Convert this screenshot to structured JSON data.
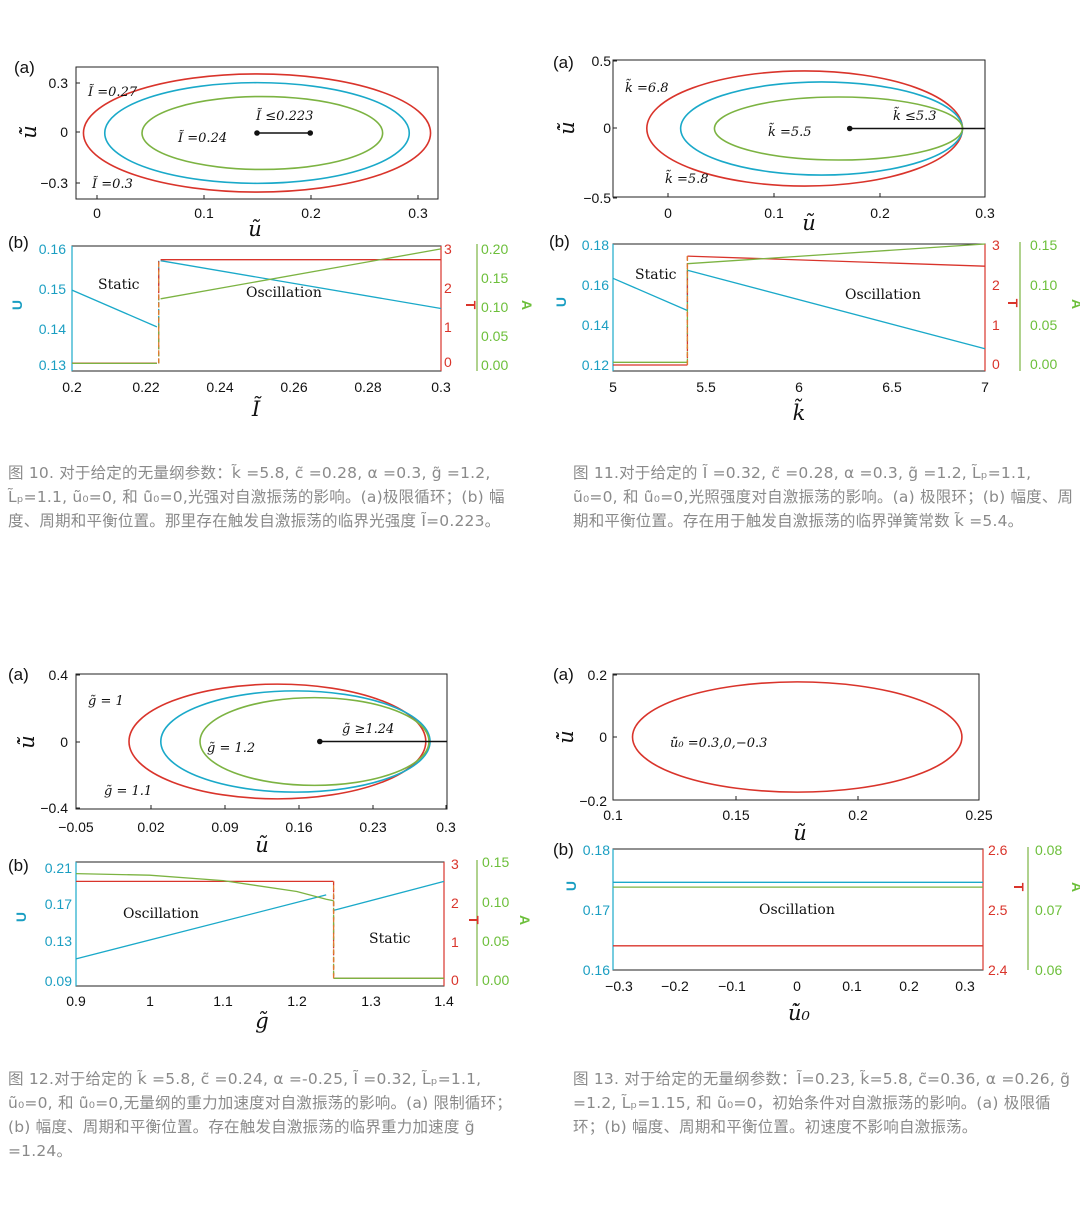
{
  "figures": [
    {
      "caption": "图 10. 对于给定的无量纲参数：k̃ =5.8, c̃ =0.28,  α =0.3, g̃ =1.2, L̃ₚ=1.1, ũ₀=0, 和 u̇̃₀=0,光强对自激振荡的影响。(a)极限循环；(b)  幅度、周期和平衡位置。那里存在触发自激振荡的临界光强度 Ĩ=0.223。",
      "panel_a": {
        "letter": "(a)",
        "xlabel": "ũ",
        "ylabel": "u̇̃",
        "xticks": [
          "0",
          "0.1",
          "0.2",
          "0.3"
        ],
        "yticks": [
          "0.3",
          "0",
          "−0.3"
        ],
        "annotations": [
          "Ĩ =0.27",
          "Ĩ =0.24",
          "Ĩ =0.3",
          "Ĩ ≤0.223"
        ]
      },
      "panel_b": {
        "letter": "(b)",
        "xlabel": "Ĩ",
        "left_label": "U",
        "right_label_1": "T",
        "right_label_2": "A",
        "xticks": [
          "0.2",
          "0.22",
          "0.24",
          "0.26",
          "0.28",
          "0.3"
        ],
        "left_ticks": [
          "0.16",
          "0.15",
          "0.14",
          "0.13"
        ],
        "right_ticks_1": [
          "3",
          "2",
          "1",
          "0"
        ],
        "right_ticks_2": [
          "0.20",
          "0.15",
          "0.10",
          "0.05",
          "0.00"
        ],
        "region_labels": [
          "Static",
          "Oscillation"
        ]
      }
    },
    {
      "caption": "图 11.对于给定的 Ĩ =0.32, c̃ =0.28, α =0.3, g̃ =1.2, L̃ₚ=1.1, ũ₀=0, 和 u̇̃₀=0,光照强度对自激振荡的影响。(a) 极限环；(b) 幅度、周期和平衡位置。存在用于触发自激振荡的临界弹簧常数 k̃ =5.4。",
      "panel_a": {
        "letter": "(a)",
        "xlabel": "ũ",
        "ylabel": "u̇̃",
        "xticks": [
          "0",
          "0.1",
          "0.2",
          "0.3"
        ],
        "yticks": [
          "0.5",
          "0",
          "−0.5"
        ],
        "annotations": [
          "k̃ =6.8",
          "k̃ =5.5",
          "k̃ =5.8",
          "k̃ ≤5.3"
        ]
      },
      "panel_b": {
        "letter": "(b)",
        "xlabel": "k̃",
        "left_label": "U",
        "right_label_1": "T",
        "right_label_2": "A",
        "xticks": [
          "5",
          "5.5",
          "6",
          "6.5",
          "7"
        ],
        "left_ticks": [
          "0.18",
          "0.16",
          "0.14",
          "0.12"
        ],
        "right_ticks_1": [
          "3",
          "2",
          "1",
          "0"
        ],
        "right_ticks_2": [
          "0.15",
          "0.10",
          "0.05",
          "0.00"
        ],
        "region_labels": [
          "Static",
          "Oscillation"
        ]
      }
    },
    {
      "caption": "图 12.对于给定的 k̃ =5.8, c̃ =0.24, α =-0.25, Ĩ =0.32, L̃ₚ=1.1, ũ₀=0, 和 u̇̃₀=0,无量纲的重力加速度对自激振荡的影响。(a) 限制循环；(b)  幅度、周期和平衡位置。存在触发自激振荡的临界重力加速度 g̃ =1.24。",
      "panel_a": {
        "letter": "(a)",
        "xlabel": "ũ",
        "ylabel": "u̇̃",
        "xticks": [
          "−0.05",
          "0.02",
          "0.09",
          "0.16",
          "0.23",
          "0.3"
        ],
        "yticks": [
          "0.4",
          "0",
          "−0.4"
        ],
        "annotations": [
          "g̃ = 1",
          "g̃ = 1.2",
          "g̃ = 1.1",
          "g̃ ≥1.24"
        ]
      },
      "panel_b": {
        "letter": "(b)",
        "xlabel": "g̃",
        "left_label": "U",
        "right_label_1": "T",
        "right_label_2": "A",
        "xticks": [
          "0.9",
          "1",
          "1.1",
          "1.2",
          "1.3",
          "1.4"
        ],
        "left_ticks": [
          "0.21",
          "0.17",
          "0.13",
          "0.09"
        ],
        "right_ticks_1": [
          "3",
          "2",
          "1",
          "0"
        ],
        "right_ticks_2": [
          "0.15",
          "0.10",
          "0.05",
          "0.00"
        ],
        "region_labels": [
          "Oscillation",
          "Static"
        ]
      }
    },
    {
      "caption": "图 13. 对于给定的无量纲参数：Ĩ=0.23, k̃=5.8, c̃=0.36, α =0.26, g̃ =1.2, L̃ₚ=1.15, 和 ũ₀=0，初始条件对自激振荡的影响。(a) 极限循环；(b) 幅度、周期和平衡位置。初速度不影响自激振荡。",
      "panel_a": {
        "letter": "(a)",
        "xlabel": "ũ",
        "ylabel": "u̇̃",
        "xticks": [
          "0.1",
          "0.15",
          "0.2",
          "0.25"
        ],
        "yticks": [
          "0.2",
          "0",
          "−0.2"
        ],
        "annotations": [
          "u̇̃₀ =0.3,0,−0.3"
        ]
      },
      "panel_b": {
        "letter": "(b)",
        "xlabel": "u̇̃₀",
        "left_label": "U",
        "right_label_1": "T",
        "right_label_2": "A",
        "xticks": [
          "−0.3",
          "−0.2",
          "−0.1",
          "0",
          "0.1",
          "0.2",
          "0.3"
        ],
        "left_ticks": [
          "0.18",
          "0.17",
          "0.16"
        ],
        "right_ticks_1": [
          "2.6",
          "2.5",
          "2.4"
        ],
        "right_ticks_2": [
          "0.08",
          "0.07",
          "0.06"
        ],
        "region_labels": [
          "Oscillation"
        ]
      }
    }
  ],
  "colors": {
    "red": "#d9342b",
    "cyan": "#1aa9c9",
    "green": "#7cb342",
    "orange": "#e07a2e",
    "caption": "#8a8a8a"
  },
  "chart_data": [
    {
      "type": "line",
      "id": "fig10a",
      "xlim": [
        -0.02,
        0.32
      ],
      "ylim": [
        -0.38,
        0.38
      ],
      "series": [
        {
          "label": "Ĩ =0.3",
          "color": "#d9342b",
          "cx": 0.15,
          "cy": 0,
          "rx": 0.163,
          "ry": 0.34
        },
        {
          "label": "Ĩ =0.27",
          "color": "#1aa9c9",
          "cx": 0.15,
          "cy": 0,
          "rx": 0.143,
          "ry": 0.29
        },
        {
          "label": "Ĩ =0.24",
          "color": "#7cb342",
          "cx": 0.155,
          "cy": 0,
          "rx": 0.113,
          "ry": 0.21
        }
      ],
      "fixed_point": {
        "x": [
          0.15,
          0.2
        ],
        "y": [
          0,
          0
        ]
      }
    },
    {
      "type": "line",
      "id": "fig10b",
      "xlim": [
        0.2,
        0.3
      ],
      "series": [
        {
          "name": "U",
          "axis": "left",
          "ylim": [
            0.128,
            0.162
          ],
          "color": "#1aa9c9",
          "segments": [
            [
              [
                0.2,
                0.15
              ],
              [
                0.223,
                0.14
              ]
            ],
            [
              [
                0.224,
                0.158
              ],
              [
                0.3,
                0.145
              ]
            ]
          ]
        },
        {
          "name": "T",
          "axis": "right1",
          "ylim": [
            -0.2,
            3
          ],
          "color": "#d9342b",
          "segments": [
            [
              [
                0.2,
                0
              ],
              [
                0.223,
                0
              ]
            ],
            [
              [
                0.224,
                2.65
              ],
              [
                0.3,
                2.65
              ]
            ]
          ]
        },
        {
          "name": "A",
          "axis": "right2",
          "ylim": [
            -0.013,
            0.2
          ],
          "color": "#7cb342",
          "segments": [
            [
              [
                0.2,
                0
              ],
              [
                0.223,
                0
              ]
            ],
            [
              [
                0.224,
                0.11
              ],
              [
                0.3,
                0.195
              ]
            ]
          ]
        }
      ],
      "jump_x": 0.2235
    },
    {
      "type": "line",
      "id": "fig11a",
      "xlim": [
        -0.03,
        0.3
      ],
      "ylim": [
        -0.5,
        0.5
      ],
      "series": [
        {
          "label": "k̃ =6.8",
          "color": "#d9342b",
          "cx": 0.14,
          "cy": 0,
          "rx": 0.14,
          "ry": 0.42
        },
        {
          "label": "k̃ =5.8",
          "color": "#1aa9c9",
          "cx": 0.155,
          "cy": 0,
          "rx": 0.125,
          "ry": 0.34
        },
        {
          "label": "k̃ =5.5",
          "color": "#7cb342",
          "cx": 0.17,
          "cy": 0,
          "rx": 0.11,
          "ry": 0.23
        }
      ],
      "fixed_point": {
        "x": [
          0.18,
          0.3
        ],
        "y": [
          0,
          0
        ]
      }
    },
    {
      "type": "line",
      "id": "fig11b",
      "xlim": [
        5,
        7
      ],
      "series": [
        {
          "name": "U",
          "axis": "left",
          "ylim": [
            0.117,
            0.18
          ],
          "color": "#1aa9c9",
          "segments": [
            [
              [
                5,
                0.163
              ],
              [
                5.4,
                0.147
              ]
            ],
            [
              [
                5.4,
                0.167
              ],
              [
                7,
                0.128
              ]
            ]
          ]
        },
        {
          "name": "T",
          "axis": "right1",
          "ylim": [
            -0.15,
            3
          ],
          "color": "#d9342b",
          "segments": [
            [
              [
                5,
                0
              ],
              [
                5.4,
                0
              ]
            ],
            [
              [
                5.4,
                2.7
              ],
              [
                7,
                2.45
              ]
            ]
          ]
        },
        {
          "name": "A",
          "axis": "right2",
          "ylim": [
            -0.011,
            0.15
          ],
          "color": "#7cb342",
          "segments": [
            [
              [
                5,
                0
              ],
              [
                5.4,
                0
              ]
            ],
            [
              [
                5.4,
                0.125
              ],
              [
                7,
                0.15
              ]
            ]
          ]
        }
      ],
      "jump_x": 5.4
    },
    {
      "type": "line",
      "id": "fig12a",
      "xlim": [
        -0.05,
        0.3
      ],
      "ylim": [
        -0.4,
        0.4
      ],
      "series": [
        {
          "label": "g̃ = 1",
          "color": "#d9342b",
          "cx": 0.14,
          "cy": 0,
          "rx": 0.14,
          "ry": 0.34
        },
        {
          "label": "g̃ = 1.1",
          "color": "#1aa9c9",
          "cx": 0.157,
          "cy": 0,
          "rx": 0.127,
          "ry": 0.3
        },
        {
          "label": "g̃ = 1.2",
          "color": "#7cb342",
          "cx": 0.175,
          "cy": 0,
          "rx": 0.108,
          "ry": 0.26
        }
      ],
      "fixed_point": {
        "x": [
          0.18,
          0.3
        ],
        "y": [
          0,
          0
        ]
      }
    },
    {
      "type": "line",
      "id": "fig12b",
      "xlim": [
        0.9,
        1.4
      ],
      "series": [
        {
          "name": "U",
          "axis": "left",
          "ylim": [
            0.082,
            0.21
          ],
          "color": "#1aa9c9",
          "segments": [
            [
              [
                0.9,
                0.11
              ],
              [
                1.24,
                0.176
              ]
            ],
            [
              [
                1.25,
                0.16
              ],
              [
                1.4,
                0.19
              ]
            ]
          ]
        },
        {
          "name": "T",
          "axis": "right1",
          "ylim": [
            -0.2,
            3
          ],
          "color": "#d9342b",
          "segments": [
            [
              [
                0.9,
                2.5
              ],
              [
                1.25,
                2.5
              ]
            ],
            [
              [
                1.25,
                0
              ],
              [
                1.4,
                0
              ]
            ]
          ]
        },
        {
          "name": "A",
          "axis": "right2",
          "ylim": [
            -0.01,
            0.15
          ],
          "color": "#7cb342",
          "curve": [
            [
              0.9,
              0.135
            ],
            [
              1.0,
              0.133
            ],
            [
              1.1,
              0.126
            ],
            [
              1.2,
              0.112
            ],
            [
              1.24,
              0.102
            ],
            [
              1.25,
              0.1
            ]
          ],
          "segments": [
            [
              [
                1.25,
                0
              ],
              [
                1.4,
                0
              ]
            ]
          ]
        }
      ],
      "jump_x": 1.25
    },
    {
      "type": "line",
      "id": "fig13a",
      "xlim": [
        0.1,
        0.25
      ],
      "ylim": [
        -0.2,
        0.2
      ],
      "series": [
        {
          "label": "u̇̃₀ =0.3,0,−0.3",
          "color": "#d9342b",
          "cx": 0.1755,
          "cy": 0,
          "rx": 0.0675,
          "ry": 0.175
        }
      ]
    },
    {
      "type": "line",
      "id": "fig13b",
      "xlim": [
        -0.32,
        0.33
      ],
      "series": [
        {
          "name": "U",
          "axis": "left",
          "ylim": [
            0.16,
            0.18
          ],
          "color": "#1aa9c9",
          "segments": [
            [
              [
                -0.32,
                0.1745
              ],
              [
                0.33,
                0.1745
              ]
            ]
          ]
        },
        {
          "name": "T",
          "axis": "right1",
          "ylim": [
            2.4,
            2.6
          ],
          "color": "#d9342b",
          "segments": [
            [
              [
                -0.32,
                2.44
              ],
              [
                0.33,
                2.44
              ]
            ]
          ]
        },
        {
          "name": "A",
          "axis": "right2",
          "ylim": [
            0.06,
            0.08
          ],
          "color": "#7cb342",
          "segments": [
            [
              [
                -0.32,
                0.0737
              ],
              [
                0.33,
                0.0737
              ]
            ]
          ]
        }
      ]
    }
  ]
}
